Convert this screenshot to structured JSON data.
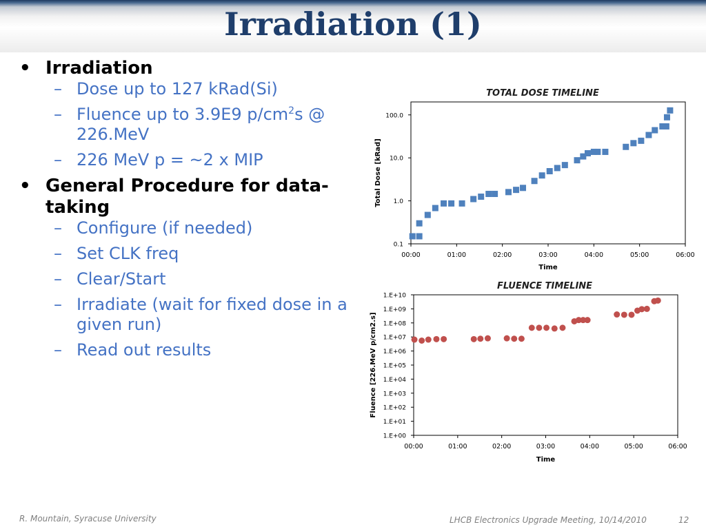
{
  "slide": {
    "title": "Irradiation (1)",
    "bullets": [
      {
        "text": "Irradiation",
        "sub": [
          {
            "text": "Dose up to 127 kRad(Si)"
          },
          {
            "pre": "Fluence up to 3.9E9 p/cm",
            "sup": "2",
            "post": "s @ 226.MeV"
          },
          {
            "text": "226 MeV p = ~2 x MIP"
          }
        ]
      },
      {
        "text": "General Procedure for data-taking",
        "sub": [
          {
            "text": "Configure (if needed)"
          },
          {
            "text": "Set CLK freq"
          },
          {
            "text": "Clear/Start"
          },
          {
            "text": "Irradiate (wait for fixed dose in a given run)"
          },
          {
            "text": "Read out results"
          }
        ]
      }
    ],
    "footer_left": "R. Mountain, Syracuse University",
    "footer_right": "LHCB Electronics Upgrade Meeting, 10/14/2010",
    "page_number": "12"
  },
  "chart_data": [
    {
      "type": "scatter",
      "title": "TOTAL DOSE TIMELINE",
      "xlabel": "Time",
      "ylabel": "Total Dose  [kRad]",
      "y_scale": "log",
      "xlim": [
        "00:00",
        "06:00"
      ],
      "ylim": [
        0.1,
        200
      ],
      "x_ticks": [
        "00:00",
        "01:00",
        "02:00",
        "03:00",
        "04:00",
        "05:00",
        "06:00"
      ],
      "y_ticks": [
        "0.1",
        "1.0",
        "10.0",
        "100.0"
      ],
      "marker": "square",
      "color": "#4f81bd",
      "grid": false,
      "points": [
        [
          "00:02",
          0.15
        ],
        [
          "00:11",
          0.15
        ],
        [
          "00:11",
          0.3
        ],
        [
          "00:22",
          0.47
        ],
        [
          "00:32",
          0.68
        ],
        [
          "00:43",
          0.87
        ],
        [
          "00:53",
          0.87
        ],
        [
          "01:07",
          0.87
        ],
        [
          "01:22",
          1.1
        ],
        [
          "01:32",
          1.25
        ],
        [
          "01:42",
          1.45
        ],
        [
          "01:50",
          1.45
        ],
        [
          "02:08",
          1.6
        ],
        [
          "02:18",
          1.8
        ],
        [
          "02:27",
          2.0
        ],
        [
          "02:42",
          2.9
        ],
        [
          "02:52",
          3.9
        ],
        [
          "03:02",
          4.9
        ],
        [
          "03:12",
          5.8
        ],
        [
          "03:22",
          6.8
        ],
        [
          "03:38",
          8.8
        ],
        [
          "03:46",
          10.8
        ],
        [
          "03:52",
          12.8
        ],
        [
          "04:00",
          13.8
        ],
        [
          "04:05",
          13.8
        ],
        [
          "04:15",
          13.8
        ],
        [
          "04:42",
          18.0
        ],
        [
          "04:52",
          22.0
        ],
        [
          "05:02",
          25.0
        ],
        [
          "05:12",
          34.0
        ],
        [
          "05:20",
          44.0
        ],
        [
          "05:30",
          54.0
        ],
        [
          "05:35",
          54.0
        ],
        [
          "05:36",
          88.0
        ],
        [
          "05:40",
          127.0
        ]
      ]
    },
    {
      "type": "scatter",
      "title": "FLUENCE TIMELINE",
      "xlabel": "Time",
      "ylabel": "Fluence  [226.MeV p/cm2.s]",
      "y_scale": "log",
      "xlim": [
        "00:00",
        "06:00"
      ],
      "ylim": [
        1,
        10000000000
      ],
      "x_ticks": [
        "00:00",
        "01:00",
        "02:00",
        "03:00",
        "04:00",
        "05:00",
        "06:00"
      ],
      "y_ticks": [
        "1.E+00",
        "1.E+01",
        "1.E+02",
        "1.E+03",
        "1.E+04",
        "1.E+05",
        "1.E+06",
        "1.E+07",
        "1.E+08",
        "1.E+09",
        "1.E+10"
      ],
      "marker": "circle",
      "color": "#c0504d",
      "grid": false,
      "points": [
        [
          "00:01",
          6500000
        ],
        [
          "00:11",
          5500000
        ],
        [
          "00:20",
          6500000
        ],
        [
          "00:31",
          7000000
        ],
        [
          "00:41",
          7000000
        ],
        [
          "01:22",
          7000000
        ],
        [
          "01:31",
          7500000
        ],
        [
          "01:41",
          8000000
        ],
        [
          "02:07",
          8000000
        ],
        [
          "02:17",
          7500000
        ],
        [
          "02:27",
          7500000
        ],
        [
          "02:41",
          45000000
        ],
        [
          "02:51",
          45000000
        ],
        [
          "03:01",
          45000000
        ],
        [
          "03:12",
          40000000
        ],
        [
          "03:23",
          45000000
        ],
        [
          "03:39",
          130000000
        ],
        [
          "03:45",
          160000000
        ],
        [
          "03:51",
          160000000
        ],
        [
          "03:57",
          160000000
        ],
        [
          "04:37",
          400000000
        ],
        [
          "04:47",
          380000000
        ],
        [
          "04:57",
          380000000
        ],
        [
          "05:05",
          750000000
        ],
        [
          "05:11",
          950000000
        ],
        [
          "05:18",
          1000000000
        ],
        [
          "05:28",
          3500000000
        ],
        [
          "05:33",
          3900000000
        ]
      ]
    }
  ]
}
